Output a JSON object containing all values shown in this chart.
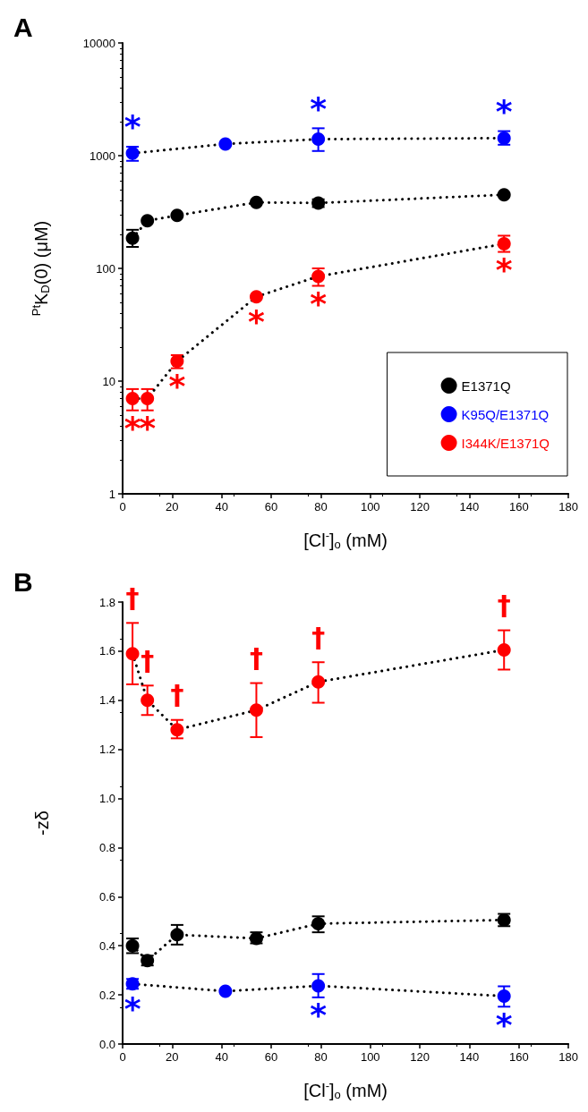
{
  "chart_data": [
    {
      "type": "line",
      "title": "A",
      "xlabel": "[Cl$^{-}$]$_{o}$ (mM)",
      "ylabel": "$^{Pt}$K$_{D}$(0) (μM)",
      "log": "y",
      "xlim": [
        0,
        180
      ],
      "xticks": [
        0,
        20,
        40,
        60,
        80,
        100,
        120,
        140,
        160,
        180
      ],
      "ylim": [
        1,
        10000
      ],
      "yticks": [
        1,
        10,
        100,
        1000,
        10000
      ],
      "grid": false,
      "legend": "bottom right",
      "marker": "circle",
      "line_style": "dotted",
      "series": [
        {
          "name": "E1371Q",
          "color": "#000000",
          "x": [
            4,
            10,
            22,
            54,
            79,
            154
          ],
          "values": [
            185,
            265,
            295,
            385,
            380,
            450
          ],
          "errors": [
            [
              155,
              220
            ],
            null,
            null,
            null,
            [
              350,
              410
            ],
            null
          ]
        },
        {
          "name": "K95Q/E1371Q",
          "color": "#0000ff",
          "x": [
            4,
            41.5,
            79,
            154
          ],
          "values": [
            1050,
            1270,
            1400,
            1430
          ],
          "errors": [
            [
              900,
              1200
            ],
            null,
            [
              1100,
              1750
            ],
            [
              1250,
              1650
            ]
          ]
        },
        {
          "name": "I344K/E1371Q",
          "color": "#ff0000",
          "x": [
            4,
            10,
            22,
            54,
            79,
            154
          ],
          "values": [
            7,
            7,
            15,
            56,
            85,
            165
          ],
          "errors": [
            [
              5.5,
              8.5
            ],
            [
              5.5,
              8.5
            ],
            [
              13,
              17
            ],
            null,
            [
              70,
              100
            ],
            [
              140,
              195
            ]
          ]
        }
      ],
      "annotations": [
        {
          "text": "*",
          "x": 4,
          "y": 1050
        },
        {
          "text": "*",
          "x": 79,
          "y": 1400
        },
        {
          "text": "*",
          "x": 154,
          "y": 1430
        },
        {
          "text": "*",
          "x": 4,
          "y": 7
        },
        {
          "text": "*",
          "x": 10,
          "y": 7
        },
        {
          "text": "*",
          "x": 22,
          "y": 15
        },
        {
          "text": "*",
          "x": 54,
          "y": 56
        },
        {
          "text": "*",
          "x": 79,
          "y": 85
        },
        {
          "text": "*",
          "x": 154,
          "y": 165
        }
      ]
    },
    {
      "type": "line",
      "title": "B",
      "xlabel": "[Cl$^{-}$]$_{o}$ (mM)",
      "ylabel": "-zδ",
      "xlim": [
        0,
        180
      ],
      "xticks": [
        0,
        20,
        40,
        60,
        80,
        100,
        120,
        140,
        160,
        180
      ],
      "ylim": [
        0,
        1.8
      ],
      "yticks": [
        {
          "value": 0,
          "label": "0.0"
        },
        0.2,
        0.4,
        0.6,
        0.8,
        {
          "value": 1,
          "label": "1.0"
        },
        1.2,
        1.4,
        1.6,
        1.8
      ],
      "grid": false,
      "marker": "circle",
      "line_style": "dotted",
      "series": [
        {
          "color": "#000000",
          "x": [
            4,
            10,
            22,
            54,
            79,
            154
          ],
          "values": [
            0.4,
            0.34,
            0.445,
            0.43,
            0.49,
            0.505
          ],
          "errors": [
            [
              0.37,
              0.43
            ],
            [
              0.32,
              0.36
            ],
            [
              0.405,
              0.485
            ],
            [
              0.41,
              0.455
            ],
            [
              0.455,
              0.52
            ],
            [
              0.48,
              0.53
            ]
          ]
        },
        {
          "color": "#0000ff",
          "x": [
            4,
            41.5,
            79,
            154
          ],
          "values": [
            0.245,
            0.215,
            0.237,
            0.195
          ],
          "errors": [
            [
              0.225,
              0.265
            ],
            null,
            [
              0.19,
              0.285
            ],
            [
              0.152,
              0.235
            ]
          ]
        },
        {
          "color": "#ff0000",
          "x": [
            4,
            10,
            22,
            54,
            79,
            154
          ],
          "values": [
            1.59,
            1.4,
            1.28,
            1.36,
            1.475,
            1.605
          ],
          "errors": [
            [
              1.465,
              1.715
            ],
            [
              1.34,
              1.46
            ],
            [
              1.245,
              1.32
            ],
            [
              1.25,
              1.47
            ],
            [
              1.39,
              1.555
            ],
            [
              1.525,
              1.685
            ]
          ]
        }
      ],
      "annotations": [
        {
          "text": "†",
          "x": 4,
          "y": 1.59
        },
        {
          "text": "†",
          "x": 10,
          "y": 1.4
        },
        {
          "text": "†",
          "x": 22,
          "y": 1.28
        },
        {
          "text": "†",
          "x": 54,
          "y": 1.36
        },
        {
          "text": "†",
          "x": 79,
          "y": 1.475
        },
        {
          "text": "†",
          "x": 154,
          "y": 1.605
        },
        {
          "text": "*",
          "x": 4,
          "y": 0.245
        },
        {
          "text": "*",
          "x": 79,
          "y": 0.237
        },
        {
          "text": "*",
          "x": 154,
          "y": 0.195
        }
      ]
    }
  ]
}
